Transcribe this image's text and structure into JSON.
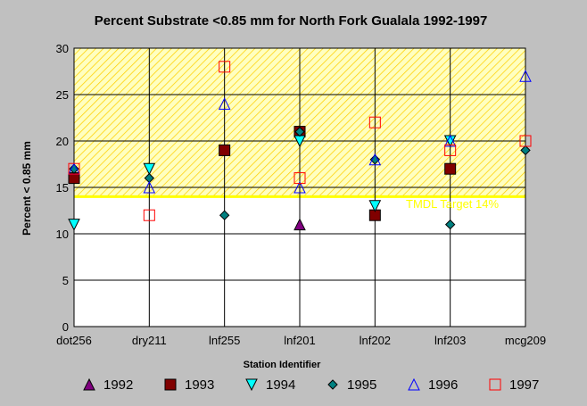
{
  "chart_data": {
    "type": "scatter",
    "title": "Percent Substrate <0.85 mm for North Fork Gualala 1992-1997",
    "xlabel": "Station Identifier",
    "ylabel": "Percent < 0.85 mm",
    "ylim": [
      0,
      30
    ],
    "yticks": [
      0,
      5,
      10,
      15,
      20,
      25,
      30
    ],
    "categories": [
      "dot256",
      "dry211",
      "lnf255",
      "lnf201",
      "lnf202",
      "lnf203",
      "mcg209"
    ],
    "grid": true,
    "legend_position": "bottom",
    "target": {
      "label": "TMDL Target 14%",
      "value": 14,
      "band_max": 30,
      "color": "#ffff00"
    },
    "series": [
      {
        "name": "1992",
        "marker": "triangle-up",
        "color": "#800080",
        "fill": true,
        "values": [
          null,
          null,
          null,
          11,
          null,
          null,
          null
        ]
      },
      {
        "name": "1993",
        "marker": "square",
        "color": "#800000",
        "fill": true,
        "values": [
          16,
          null,
          19,
          21,
          12,
          17,
          null
        ]
      },
      {
        "name": "1994",
        "marker": "triangle-down",
        "color": "#00ffff",
        "fill": true,
        "values": [
          11,
          17,
          null,
          20,
          13,
          20,
          null
        ]
      },
      {
        "name": "1995",
        "marker": "diamond",
        "color": "#008080",
        "fill": true,
        "values": [
          17,
          16,
          12,
          21,
          18,
          11,
          19
        ]
      },
      {
        "name": "1996",
        "marker": "triangle-up",
        "color": "#0000ff",
        "fill": false,
        "values": [
          17,
          15,
          24,
          15,
          18,
          20,
          27
        ]
      },
      {
        "name": "1997",
        "marker": "square",
        "color": "#ff0000",
        "fill": false,
        "values": [
          17,
          12,
          28,
          16,
          22,
          19,
          20
        ]
      }
    ]
  }
}
